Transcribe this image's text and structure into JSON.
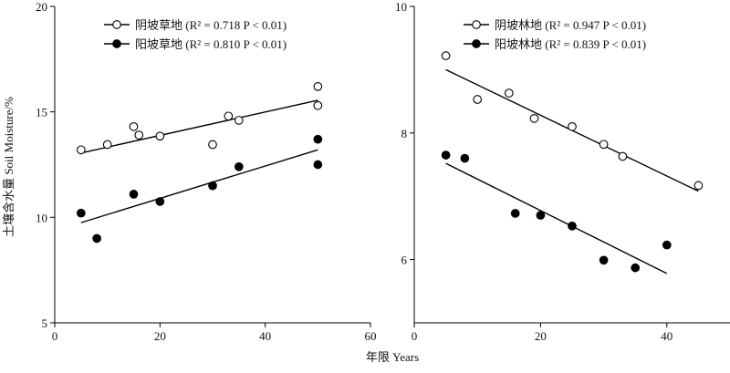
{
  "figure": {
    "ylabel": "土壤含水量 Soil Moisture/%",
    "xlabel": "年限 Years"
  },
  "chart_data": [
    {
      "type": "scatter",
      "xlim": [
        0,
        60
      ],
      "ylim": [
        5,
        20
      ],
      "xticks": [
        "0",
        "20",
        "40",
        "60"
      ],
      "yticks": [
        "5",
        "10",
        "15",
        "20"
      ],
      "legend_position": "top-left",
      "series": [
        {
          "name": "阴坡草地",
          "stats": "(R² = 0.718    P < 0.01)",
          "marker": "open-circle",
          "x": [
            5,
            10,
            15,
            16,
            20,
            30,
            33,
            35,
            50,
            50
          ],
          "y": [
            13.2,
            13.45,
            14.3,
            13.9,
            13.85,
            13.45,
            14.8,
            14.6,
            16.2,
            15.3
          ],
          "fit": {
            "x": [
              5,
              50
            ],
            "y": [
              13.05,
              15.55
            ]
          }
        },
        {
          "name": "阳坡草地",
          "stats": "(R² = 0.810    P < 0.01)",
          "marker": "filled-circle",
          "x": [
            5,
            8,
            15,
            20,
            30,
            35,
            50,
            50
          ],
          "y": [
            10.2,
            9.0,
            11.1,
            10.75,
            11.5,
            12.4,
            13.7,
            12.5
          ],
          "fit": {
            "x": [
              5,
              50
            ],
            "y": [
              9.75,
              13.2
            ]
          }
        }
      ]
    },
    {
      "type": "scatter",
      "xlim": [
        0,
        50
      ],
      "ylim": [
        5,
        10
      ],
      "xticks": [
        "0",
        "20",
        "40"
      ],
      "yticks": [
        "6",
        "8",
        "10"
      ],
      "legend_position": "top-left",
      "series": [
        {
          "name": "阴坡林地",
          "stats": "(R² = 0.947    P < 0.01)",
          "marker": "open-circle",
          "x": [
            5,
            10,
            15,
            19,
            25,
            30,
            33,
            45
          ],
          "y": [
            9.22,
            8.53,
            8.63,
            8.23,
            8.1,
            7.82,
            7.63,
            7.17
          ],
          "fit": {
            "x": [
              5,
              45
            ],
            "y": [
              9.0,
              7.08
            ]
          }
        },
        {
          "name": "阳坡林地",
          "stats": "(R² = 0.839    P < 0.01)",
          "marker": "filled-circle",
          "x": [
            5,
            8,
            16,
            20,
            25,
            30,
            35,
            40
          ],
          "y": [
            7.65,
            7.6,
            6.73,
            6.7,
            6.53,
            5.99,
            5.87,
            6.23
          ],
          "fit": {
            "x": [
              5,
              40
            ],
            "y": [
              7.52,
              5.78
            ]
          }
        }
      ]
    }
  ]
}
